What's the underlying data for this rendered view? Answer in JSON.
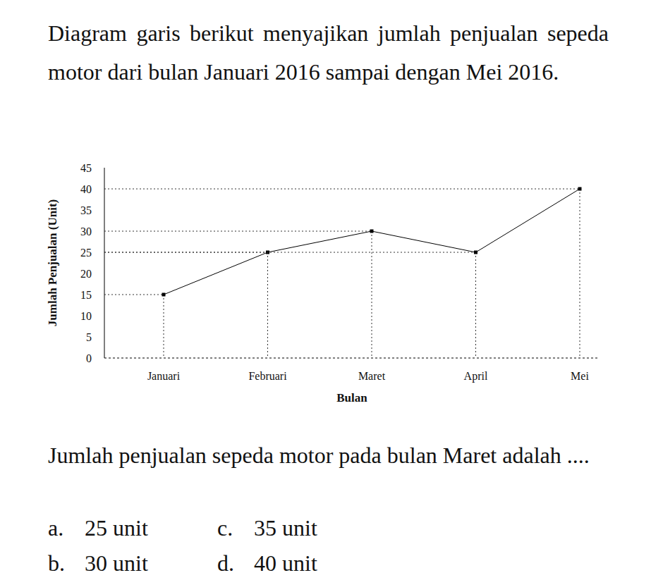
{
  "intro": "Diagram garis berikut menyajikan jumlah penjualan sepeda motor dari bulan Januari 2016 sampai dengan Mei 2016.",
  "chart_data": {
    "type": "line",
    "categories": [
      "Januari",
      "Februari",
      "Maret",
      "April",
      "Mei"
    ],
    "values": [
      15,
      25,
      30,
      25,
      40
    ],
    "color": "#000000",
    "marker": "square",
    "x_label": "Bulan",
    "y_label": "Jumlah Penjualan (Unit)",
    "ylim": [
      0,
      45
    ],
    "yticks": [
      0,
      5,
      10,
      15,
      20,
      25,
      30,
      35,
      40,
      45
    ]
  },
  "question": "Jumlah penjualan sepeda motor pada bulan Maret adalah ....",
  "options": [
    {
      "letter": "a.",
      "text": "25 unit"
    },
    {
      "letter": "b.",
      "text": "30 unit"
    },
    {
      "letter": "c.",
      "text": "35 unit"
    },
    {
      "letter": "d.",
      "text": "40 unit"
    }
  ]
}
